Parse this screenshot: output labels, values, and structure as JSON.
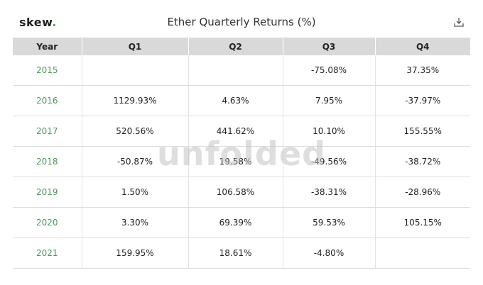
{
  "header": {
    "logo": "skew",
    "logo_dot": ".",
    "title": "Ether Quarterly Returns (%)"
  },
  "watermark": "unfolded",
  "table": {
    "columns": [
      "Year",
      "Q1",
      "Q2",
      "Q3",
      "Q4"
    ],
    "rows": [
      [
        "2015",
        null,
        null,
        "-75.08%",
        "37.35%"
      ],
      [
        "2016",
        "1129.93%",
        "4.63%",
        "7.95%",
        "-37.97%"
      ],
      [
        "2017",
        "520.56%",
        "441.62%",
        "10.10%",
        "155.55%"
      ],
      [
        "2018",
        "-50.87%",
        "19.58%",
        "-49.56%",
        "-38.72%"
      ],
      [
        "2019",
        "1.50%",
        "106.58%",
        "-38.31%",
        "-28.96%"
      ],
      [
        "2020",
        "3.30%",
        "69.39%",
        "59.53%",
        "105.15%"
      ],
      [
        "2021",
        "159.95%",
        "18.61%",
        "-4.80%",
        null
      ]
    ]
  }
}
